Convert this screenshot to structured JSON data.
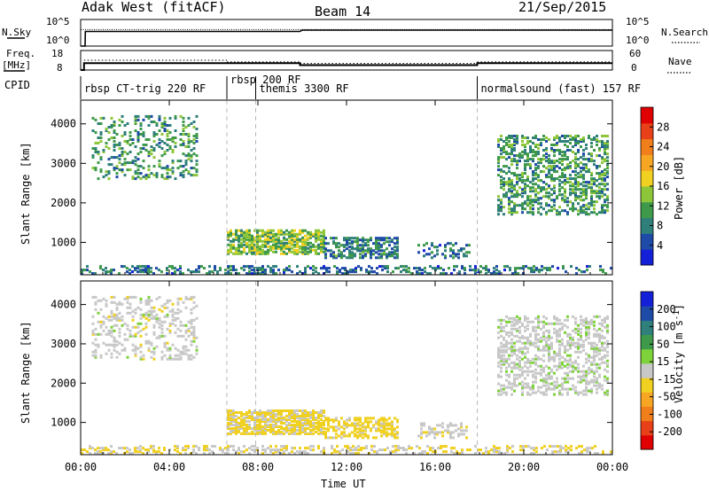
{
  "chart_data": [
    {
      "type": "line",
      "panel": "noise",
      "left_label": "N.Sky",
      "right_label": "N.Search",
      "left_ticks": [
        "10^5",
        "10^0"
      ],
      "right_ticks": [
        "10^5",
        "10^0"
      ],
      "x_hours": [
        0,
        0.2,
        0.21,
        2,
        4,
        6,
        8,
        9.9,
        10,
        12,
        14,
        16,
        18,
        20,
        22,
        24
      ],
      "sky_level": [
        0,
        0,
        0.55,
        0.55,
        0.55,
        0.55,
        0.55,
        0.55,
        0.6,
        0.6,
        0.6,
        0.6,
        0.6,
        0.6,
        0.6,
        0.6
      ],
      "search_level": [
        0.62,
        0.62,
        0.62,
        0.62,
        0.62,
        0.62,
        0.62,
        0.62,
        0.62,
        0.62,
        0.62,
        0.62,
        0.62,
        0.62,
        0.62,
        0.62
      ]
    },
    {
      "type": "line",
      "panel": "frequency",
      "left_label": "Freq.",
      "left_unit": "[MHz]",
      "right_label": "Nave",
      "left_ticks": [
        "18",
        "8"
      ],
      "right_ticks": [
        "60",
        "0"
      ],
      "freq_segments": [
        {
          "from": 0,
          "to": 0.15,
          "value": 8
        },
        {
          "from": 0.15,
          "to": 9.9,
          "value": 11.5
        },
        {
          "from": 9.9,
          "to": 17.9,
          "value": 10.5
        },
        {
          "from": 17.9,
          "to": 24,
          "value": 11.5
        }
      ],
      "nave_segments": [
        {
          "from": 0.15,
          "to": 6.6,
          "value": 30
        },
        {
          "from": 6.6,
          "to": 9.9,
          "value": 25
        },
        {
          "from": 9.9,
          "to": 17.9,
          "value": 20
        },
        {
          "from": 17.9,
          "to": 24,
          "value": 25
        }
      ]
    }
  ],
  "header": {
    "title_left": "Adak West (fitACF)",
    "title_center": "Beam 14",
    "title_right": "21/Sep/2015"
  },
  "cpid": {
    "label": "CPID",
    "entries": [
      {
        "start": 0.0,
        "text": "rbsp CT-trig 220 RF"
      },
      {
        "start": 6.6,
        "text": "rbsp 200 RF"
      },
      {
        "start": 7.9,
        "text": "themis 3300 RF"
      },
      {
        "start": 17.9,
        "text": "normalsound (fast) 157 RF"
      }
    ]
  },
  "range_time": {
    "type": "heatmap",
    "x_range_hours": [
      0,
      24
    ],
    "y_range_km": [
      180,
      4600
    ],
    "ylabel": "Slant Range [km]",
    "y_ticks": [
      "1000",
      "2000",
      "3000",
      "4000"
    ],
    "y_tick_values": [
      1000,
      2000,
      3000,
      4000
    ],
    "xlabel": "Time UT",
    "x_ticks": [
      "00:00",
      "04:00",
      "08:00",
      "12:00",
      "16:00",
      "20:00",
      "00:00"
    ],
    "mode_change_hours": [
      6.6,
      7.9,
      17.9
    ],
    "echo_regions": [
      {
        "t0": 0.5,
        "t1": 5.3,
        "r0": 2600,
        "r1": 4200,
        "density": 0.25,
        "power": 9,
        "velocity": 0
      },
      {
        "t0": 6.6,
        "t1": 11.0,
        "r0": 700,
        "r1": 1300,
        "density": 0.75,
        "power": 12,
        "velocity": -35
      },
      {
        "t0": 11.0,
        "t1": 14.3,
        "r0": 600,
        "r1": 1100,
        "density": 0.55,
        "power": 7,
        "velocity": -45
      },
      {
        "t0": 15.2,
        "t1": 17.5,
        "r0": 600,
        "r1": 1000,
        "density": 0.3,
        "power": 6,
        "velocity": -10
      },
      {
        "t0": 18.8,
        "t1": 23.8,
        "r0": 1700,
        "r1": 3700,
        "density": 0.4,
        "power": 9,
        "velocity": 5
      },
      {
        "t0": 0.0,
        "t1": 24.0,
        "r0": 200,
        "r1": 420,
        "density": 0.35,
        "power": 6,
        "velocity": -20
      }
    ],
    "power_scale": {
      "label": "Power [dB]",
      "ticks": [
        "4",
        "8",
        "12",
        "16",
        "20",
        "24",
        "28"
      ],
      "colors": [
        "#1420d8",
        "#1e4aa8",
        "#2f7f7a",
        "#3e9a4a",
        "#8ec63a",
        "#f0d020",
        "#f6a623",
        "#f07e1a",
        "#e84018",
        "#e00000"
      ]
    },
    "velocity_scale": {
      "label": "Velocity [m s",
      "label_sup": "-1",
      "label_end": "]",
      "ticks": [
        "200",
        "100",
        "50",
        "15",
        "-15",
        "-50",
        "-100",
        "-200"
      ],
      "colors": [
        "#1420d8",
        "#1e4aa8",
        "#2f7f7a",
        "#3e9a4a",
        "#7ed23a",
        "#c8c8c8",
        "#f0d020",
        "#f6a623",
        "#f07e1a",
        "#e84018",
        "#e00000"
      ]
    }
  }
}
